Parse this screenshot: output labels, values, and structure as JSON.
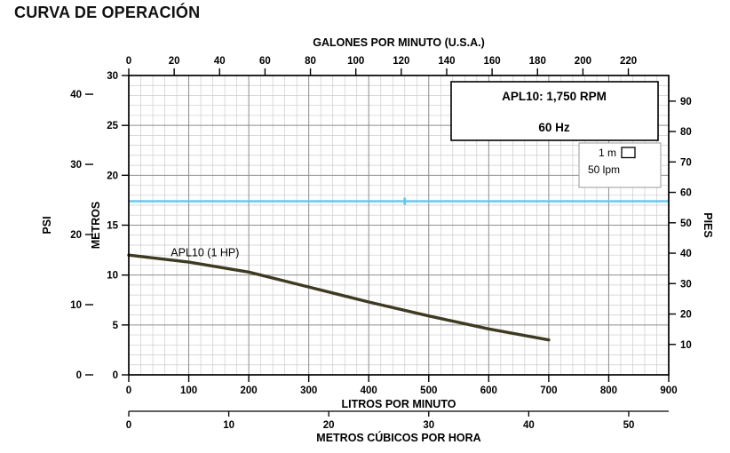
{
  "title": "CURVA DE OPERACIÓN",
  "chart_data": {
    "type": "line",
    "title": "CURVA DE OPERACIÓN",
    "plot": {
      "x_range_lpm": [
        0,
        900
      ],
      "y_range_m": [
        0,
        30
      ]
    },
    "grid": {
      "minor_x_lpm": 20,
      "major_x_lpm": 100,
      "minor_y_m": 1,
      "major_y_m": 5
    },
    "axes": {
      "top": {
        "label": "GALONES POR MINUTO (U.S.A.)",
        "ticks": [
          0,
          20,
          40,
          60,
          80,
          100,
          120,
          140,
          160,
          180,
          200,
          220
        ],
        "lpm_per_unit": 3.785
      },
      "bottom": {
        "label": "LITROS POR MINUTO",
        "ticks": [
          0,
          100,
          200,
          300,
          400,
          500,
          600,
          700,
          800,
          900
        ]
      },
      "bottom2": {
        "label": "METROS CÚBICOS POR HORA",
        "ticks": [
          0,
          10,
          20,
          30,
          40,
          50
        ],
        "lpm_per_unit": 16.667
      },
      "left": {
        "label": "METROS",
        "ticks": [
          0,
          5,
          10,
          15,
          20,
          25,
          30
        ]
      },
      "left2": {
        "label": "PSI",
        "ticks": [
          0,
          10,
          20,
          30,
          40
        ],
        "m_per_unit": 0.7031
      },
      "right": {
        "label": "PIES",
        "ticks": [
          10,
          20,
          30,
          40,
          50,
          60,
          70,
          80,
          90
        ],
        "m_per_unit": 0.3048
      }
    },
    "series": [
      {
        "name": "APL10 (1 HP)",
        "color": "#3e3a22",
        "points": [
          [
            0,
            12
          ],
          [
            100,
            11.3
          ],
          [
            200,
            10.3
          ],
          [
            300,
            8.8
          ],
          [
            400,
            7.3
          ],
          [
            500,
            5.9
          ],
          [
            600,
            4.6
          ],
          [
            700,
            3.5
          ]
        ]
      }
    ],
    "reference_line": {
      "value_m": 17.4,
      "color": "#5bc8e8",
      "marker_x_lpm": 460
    },
    "legend_box": {
      "line1": "APL10: 1,750 RPM",
      "line2": "60 Hz"
    },
    "scale_key": {
      "height_label": "1 m",
      "width_label": "50 lpm"
    }
  }
}
